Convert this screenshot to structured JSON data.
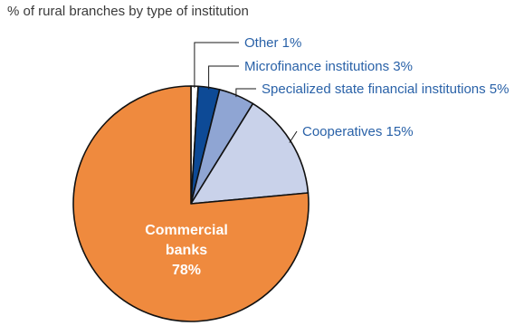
{
  "chart_data": {
    "type": "pie",
    "title": "% of rural branches by type of institution",
    "slices": [
      {
        "name": "Other",
        "label": "Other 1%",
        "value": 1,
        "color": "#ffffff"
      },
      {
        "name": "Microfinance institutions",
        "label": "Microfinance institutions 3%",
        "value": 3,
        "color": "#0d4a96"
      },
      {
        "name": "Specialized state financial institutions",
        "label": "Specialized state financial institutions 5%",
        "value": 5,
        "color": "#8fa5d3"
      },
      {
        "name": "Cooperatives",
        "label": "Cooperatives 15%",
        "value": 15,
        "color": "#c9d2ea"
      },
      {
        "name": "Commercial banks",
        "label_lines": [
          "Commercial",
          "banks",
          "78%"
        ],
        "value": 78,
        "color": "#ef8a3e"
      }
    ],
    "label_color": "#2a62a8",
    "inner_label_color": "#ffffff",
    "outline_color": "#111111"
  }
}
